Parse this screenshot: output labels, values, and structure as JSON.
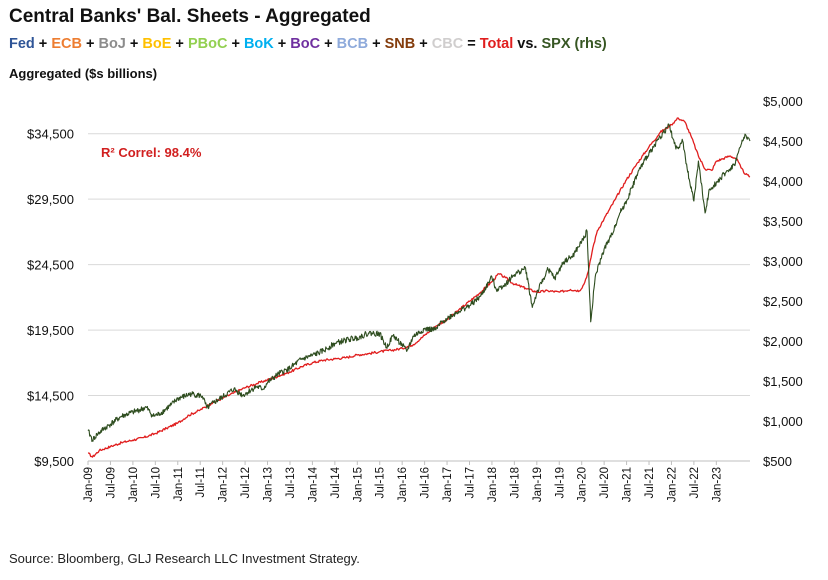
{
  "title": "Central Banks' Bal. Sheets - Aggregated",
  "legend": [
    {
      "text": "Fed",
      "color": "#2f5597"
    },
    {
      "text": " + ",
      "color": "#111111"
    },
    {
      "text": "ECB",
      "color": "#ed7d31"
    },
    {
      "text": " + ",
      "color": "#111111"
    },
    {
      "text": "BoJ",
      "color": "#8c8c8c"
    },
    {
      "text": " + ",
      "color": "#111111"
    },
    {
      "text": "BoE",
      "color": "#ffc000"
    },
    {
      "text": " + ",
      "color": "#111111"
    },
    {
      "text": "PBoC",
      "color": "#92d050"
    },
    {
      "text": " + ",
      "color": "#111111"
    },
    {
      "text": "BoK",
      "color": "#00b0f0"
    },
    {
      "text": " + ",
      "color": "#111111"
    },
    {
      "text": "BoC",
      "color": "#7030a0"
    },
    {
      "text": " + ",
      "color": "#111111"
    },
    {
      "text": "BCB",
      "color": "#8eaadb"
    },
    {
      "text": " + ",
      "color": "#111111"
    },
    {
      "text": "SNB",
      "color": "#843c0c"
    },
    {
      "text": " + ",
      "color": "#111111"
    },
    {
      "text": "CBC",
      "color": "#d0cece"
    },
    {
      "text": " = ",
      "color": "#111111"
    },
    {
      "text": "Total",
      "color": "#e01e1e"
    },
    {
      "text": " vs. ",
      "color": "#111111"
    },
    {
      "text": "SPX (rhs)",
      "color": "#375623"
    }
  ],
  "ylabel": "Aggregated ($s billions)",
  "source": "Source: Bloomberg, GLJ Research LLC Investment Strategy.",
  "chart_data": {
    "type": "line",
    "left_ticks": [
      "$9,500",
      "$14,500",
      "$19,500",
      "$24,500",
      "$29,500",
      "$34,500"
    ],
    "left_range": [
      9500,
      37000
    ],
    "right_ticks": [
      "$500",
      "$1,000",
      "$1,500",
      "$2,000",
      "$2,500",
      "$3,000",
      "$3,500",
      "$4,000",
      "$4,500",
      "$5,000"
    ],
    "right_range": [
      500,
      5000
    ],
    "x_range": [
      2009.0,
      2023.75
    ],
    "x_ticks": [
      {
        "label": "Jan-09",
        "t": 2009.0
      },
      {
        "label": "Jul-09",
        "t": 2009.5
      },
      {
        "label": "Jan-10",
        "t": 2010.0
      },
      {
        "label": "Jul-10",
        "t": 2010.5
      },
      {
        "label": "Jan-11",
        "t": 2011.0
      },
      {
        "label": "Jul-11",
        "t": 2011.5
      },
      {
        "label": "Jan-12",
        "t": 2012.0
      },
      {
        "label": "Jul-12",
        "t": 2012.5
      },
      {
        "label": "Jan-13",
        "t": 2013.0
      },
      {
        "label": "Jul-13",
        "t": 2013.5
      },
      {
        "label": "Jan-14",
        "t": 2014.0
      },
      {
        "label": "Jul-14",
        "t": 2014.5
      },
      {
        "label": "Jan-15",
        "t": 2015.0
      },
      {
        "label": "Jul-15",
        "t": 2015.5
      },
      {
        "label": "Jan-16",
        "t": 2016.0
      },
      {
        "label": "Jul-16",
        "t": 2016.5
      },
      {
        "label": "Jan-17",
        "t": 2017.0
      },
      {
        "label": "Jul-17",
        "t": 2017.5
      },
      {
        "label": "Jan-18",
        "t": 2018.0
      },
      {
        "label": "Jul-18",
        "t": 2018.5
      },
      {
        "label": "Jan-19",
        "t": 2019.0
      },
      {
        "label": "Jul-19",
        "t": 2019.5
      },
      {
        "label": "Jan-20",
        "t": 2020.0
      },
      {
        "label": "Jul-20",
        "t": 2020.5
      },
      {
        "label": "Jan-21",
        "t": 2021.0
      },
      {
        "label": "Jul-21",
        "t": 2021.5
      },
      {
        "label": "Jan-22",
        "t": 2022.0
      },
      {
        "label": "Jul-22",
        "t": 2022.5
      },
      {
        "label": "Jan-23",
        "t": 2023.0
      }
    ],
    "annotation": "R² Correl: 98.4%",
    "series": [
      {
        "name": "Total",
        "axis": "left",
        "color": "#e01e1e",
        "points": [
          [
            2009.0,
            10100
          ],
          [
            2009.1,
            9800
          ],
          [
            2009.25,
            10300
          ],
          [
            2009.5,
            10600
          ],
          [
            2009.75,
            10900
          ],
          [
            2010.0,
            11100
          ],
          [
            2010.25,
            11300
          ],
          [
            2010.5,
            11600
          ],
          [
            2010.75,
            12000
          ],
          [
            2011.0,
            12400
          ],
          [
            2011.25,
            13000
          ],
          [
            2011.5,
            13400
          ],
          [
            2011.75,
            13900
          ],
          [
            2012.0,
            14300
          ],
          [
            2012.25,
            14700
          ],
          [
            2012.5,
            15100
          ],
          [
            2012.75,
            15400
          ],
          [
            2013.0,
            15700
          ],
          [
            2013.25,
            16000
          ],
          [
            2013.5,
            16300
          ],
          [
            2013.75,
            16700
          ],
          [
            2014.0,
            17000
          ],
          [
            2014.25,
            17200
          ],
          [
            2014.5,
            17300
          ],
          [
            2014.75,
            17400
          ],
          [
            2015.0,
            17600
          ],
          [
            2015.25,
            17700
          ],
          [
            2015.5,
            17850
          ],
          [
            2015.75,
            17950
          ],
          [
            2016.0,
            18100
          ],
          [
            2016.25,
            18400
          ],
          [
            2016.5,
            19100
          ],
          [
            2016.75,
            19800
          ],
          [
            2017.0,
            20300
          ],
          [
            2017.25,
            21000
          ],
          [
            2017.5,
            21700
          ],
          [
            2017.75,
            22400
          ],
          [
            2018.0,
            23200
          ],
          [
            2018.15,
            23800
          ],
          [
            2018.3,
            23500
          ],
          [
            2018.5,
            23000
          ],
          [
            2018.75,
            22700
          ],
          [
            2019.0,
            22400
          ],
          [
            2019.25,
            22500
          ],
          [
            2019.5,
            22400
          ],
          [
            2019.75,
            22600
          ],
          [
            2019.95,
            22500
          ],
          [
            2020.05,
            23000
          ],
          [
            2020.15,
            24000
          ],
          [
            2020.25,
            25800
          ],
          [
            2020.35,
            27100
          ],
          [
            2020.5,
            28000
          ],
          [
            2020.75,
            29500
          ],
          [
            2021.0,
            31000
          ],
          [
            2021.25,
            32300
          ],
          [
            2021.5,
            33500
          ],
          [
            2021.75,
            34600
          ],
          [
            2022.0,
            35200
          ],
          [
            2022.15,
            35700
          ],
          [
            2022.3,
            35400
          ],
          [
            2022.45,
            34200
          ],
          [
            2022.6,
            32800
          ],
          [
            2022.75,
            31800
          ],
          [
            2022.9,
            31700
          ],
          [
            2023.0,
            32400
          ],
          [
            2023.15,
            32600
          ],
          [
            2023.3,
            32800
          ],
          [
            2023.45,
            32600
          ],
          [
            2023.55,
            31900
          ],
          [
            2023.65,
            31400
          ],
          [
            2023.75,
            31200
          ]
        ]
      },
      {
        "name": "SPX (rhs)",
        "axis": "right",
        "color": "#2e4d1f",
        "points": [
          [
            2009.0,
            880
          ],
          [
            2009.1,
            760
          ],
          [
            2009.2,
            830
          ],
          [
            2009.35,
            900
          ],
          [
            2009.5,
            960
          ],
          [
            2009.75,
            1060
          ],
          [
            2010.0,
            1110
          ],
          [
            2010.3,
            1170
          ],
          [
            2010.45,
            1060
          ],
          [
            2010.6,
            1090
          ],
          [
            2010.85,
            1200
          ],
          [
            2011.0,
            1280
          ],
          [
            2011.3,
            1340
          ],
          [
            2011.55,
            1310
          ],
          [
            2011.65,
            1160
          ],
          [
            2011.8,
            1230
          ],
          [
            2012.0,
            1300
          ],
          [
            2012.25,
            1400
          ],
          [
            2012.45,
            1320
          ],
          [
            2012.75,
            1430
          ],
          [
            2012.9,
            1400
          ],
          [
            2013.0,
            1480
          ],
          [
            2013.25,
            1590
          ],
          [
            2013.5,
            1660
          ],
          [
            2013.75,
            1770
          ],
          [
            2014.0,
            1820
          ],
          [
            2014.25,
            1880
          ],
          [
            2014.5,
            1970
          ],
          [
            2014.8,
            2020
          ],
          [
            2015.0,
            2040
          ],
          [
            2015.25,
            2100
          ],
          [
            2015.5,
            2090
          ],
          [
            2015.65,
            1920
          ],
          [
            2015.8,
            2070
          ],
          [
            2016.0,
            1950
          ],
          [
            2016.1,
            1870
          ],
          [
            2016.25,
            2060
          ],
          [
            2016.5,
            2150
          ],
          [
            2016.75,
            2140
          ],
          [
            2016.9,
            2250
          ],
          [
            2017.0,
            2280
          ],
          [
            2017.25,
            2370
          ],
          [
            2017.5,
            2440
          ],
          [
            2017.75,
            2560
          ],
          [
            2018.0,
            2800
          ],
          [
            2018.1,
            2640
          ],
          [
            2018.3,
            2710
          ],
          [
            2018.5,
            2830
          ],
          [
            2018.75,
            2910
          ],
          [
            2018.9,
            2420
          ],
          [
            2019.0,
            2600
          ],
          [
            2019.25,
            2900
          ],
          [
            2019.4,
            2780
          ],
          [
            2019.6,
            2990
          ],
          [
            2019.8,
            3060
          ],
          [
            2020.0,
            3240
          ],
          [
            2020.12,
            3370
          ],
          [
            2020.2,
            2240
          ],
          [
            2020.3,
            2800
          ],
          [
            2020.5,
            3150
          ],
          [
            2020.65,
            3300
          ],
          [
            2020.85,
            3600
          ],
          [
            2021.0,
            3750
          ],
          [
            2021.25,
            4100
          ],
          [
            2021.5,
            4350
          ],
          [
            2021.75,
            4550
          ],
          [
            2021.95,
            4700
          ],
          [
            2022.1,
            4400
          ],
          [
            2022.25,
            4500
          ],
          [
            2022.35,
            4150
          ],
          [
            2022.5,
            3750
          ],
          [
            2022.6,
            4250
          ],
          [
            2022.75,
            3600
          ],
          [
            2022.85,
            3900
          ],
          [
            2023.0,
            3980
          ],
          [
            2023.2,
            4100
          ],
          [
            2023.4,
            4200
          ],
          [
            2023.55,
            4450
          ],
          [
            2023.65,
            4580
          ],
          [
            2023.75,
            4500
          ]
        ]
      }
    ]
  }
}
